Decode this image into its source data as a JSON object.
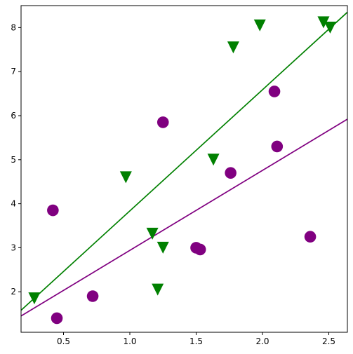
{
  "chart_data": {
    "type": "scatter",
    "title": "",
    "xlabel": "",
    "ylabel": "",
    "xlim": [
      0.18,
      2.64
    ],
    "ylim": [
      1.08,
      8.5
    ],
    "grid": false,
    "legend": "none",
    "x_ticks": [
      {
        "value": 0.5,
        "label": "0.5"
      },
      {
        "value": 1.0,
        "label": "1.0"
      },
      {
        "value": 1.5,
        "label": "1.5"
      },
      {
        "value": 2.0,
        "label": "2.0"
      },
      {
        "value": 2.5,
        "label": "2.5"
      }
    ],
    "y_ticks": [
      {
        "value": 2,
        "label": "2"
      },
      {
        "value": 3,
        "label": "3"
      },
      {
        "value": 4,
        "label": "4"
      },
      {
        "value": 5,
        "label": "5"
      },
      {
        "value": 6,
        "label": "6"
      },
      {
        "value": 7,
        "label": "7"
      },
      {
        "value": 8,
        "label": "8"
      }
    ],
    "series": [
      {
        "marker": "circle",
        "color": "#800080",
        "points": [
          [
            0.42,
            3.85
          ],
          [
            0.45,
            1.4
          ],
          [
            0.72,
            1.9
          ],
          [
            1.25,
            5.85
          ],
          [
            1.5,
            3.0
          ],
          [
            1.53,
            2.96
          ],
          [
            1.76,
            4.7
          ],
          [
            2.09,
            6.55
          ],
          [
            2.11,
            5.3
          ],
          [
            2.36,
            3.25
          ]
        ],
        "fit_line": [
          [
            0.18,
            1.45
          ],
          [
            2.64,
            5.92
          ]
        ]
      },
      {
        "marker": "triangle-down",
        "color": "#008000",
        "points": [
          [
            0.28,
            1.85
          ],
          [
            0.97,
            4.6
          ],
          [
            1.17,
            3.32
          ],
          [
            1.21,
            2.05
          ],
          [
            1.25,
            3.0
          ],
          [
            1.63,
            5.0
          ],
          [
            1.78,
            7.55
          ],
          [
            1.98,
            8.05
          ],
          [
            2.46,
            8.12
          ],
          [
            2.51,
            8.0
          ]
        ],
        "fit_line": [
          [
            0.18,
            1.58
          ],
          [
            2.64,
            8.35
          ]
        ]
      }
    ]
  }
}
